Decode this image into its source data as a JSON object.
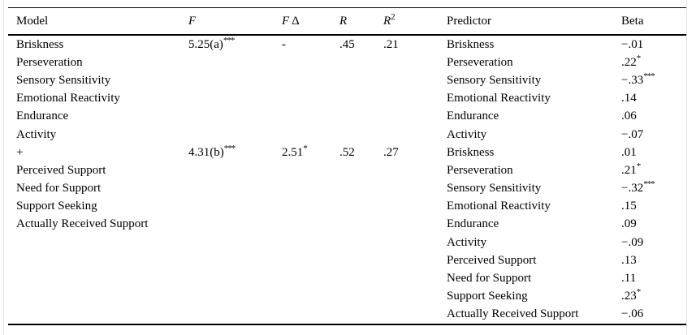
{
  "table": {
    "header": {
      "model": "Model",
      "f": "F",
      "f_delta_f": "F",
      "f_delta_symbol": "Δ",
      "r": "R",
      "r2_base": "R",
      "r2_sup": "2",
      "predictor": "Predictor",
      "beta": "Beta"
    },
    "rows": [
      {
        "model": "Briskness",
        "f": "5.25(a)",
        "f_sup": "***",
        "fd": "-",
        "fd_sup": "",
        "r": ".45",
        "r2": ".21",
        "predictor": "Briskness",
        "beta": "−.01",
        "beta_sup": ""
      },
      {
        "model": "Perseveration",
        "f": "",
        "f_sup": "",
        "fd": "",
        "fd_sup": "",
        "r": "",
        "r2": "",
        "predictor": "Perseveration",
        "beta": ".22",
        "beta_sup": "*"
      },
      {
        "model": "Sensory Sensitivity",
        "f": "",
        "f_sup": "",
        "fd": "",
        "fd_sup": "",
        "r": "",
        "r2": "",
        "predictor": "Sensory Sensitivity",
        "beta": "−.33",
        "beta_sup": "***"
      },
      {
        "model": "Emotional Reactivity",
        "f": "",
        "f_sup": "",
        "fd": "",
        "fd_sup": "",
        "r": "",
        "r2": "",
        "predictor": "Emotional Reactivity",
        "beta": ".14",
        "beta_sup": ""
      },
      {
        "model": "Endurance",
        "f": "",
        "f_sup": "",
        "fd": "",
        "fd_sup": "",
        "r": "",
        "r2": "",
        "predictor": "Endurance",
        "beta": ".06",
        "beta_sup": ""
      },
      {
        "model": "Activity",
        "f": "",
        "f_sup": "",
        "fd": "",
        "fd_sup": "",
        "r": "",
        "r2": "",
        "predictor": "Activity",
        "beta": "−.07",
        "beta_sup": ""
      },
      {
        "model": "+",
        "f": "4.31(b)",
        "f_sup": "***",
        "fd": "2.51",
        "fd_sup": "*",
        "r": ".52",
        "r2": ".27",
        "predictor": "Briskness",
        "beta": ".01",
        "beta_sup": ""
      },
      {
        "model": "Perceived Support",
        "f": "",
        "f_sup": "",
        "fd": "",
        "fd_sup": "",
        "r": "",
        "r2": "",
        "predictor": "Perseveration",
        "beta": ".21",
        "beta_sup": "*"
      },
      {
        "model": "Need for Support",
        "f": "",
        "f_sup": "",
        "fd": "",
        "fd_sup": "",
        "r": "",
        "r2": "",
        "predictor": "Sensory Sensitivity",
        "beta": "−.32",
        "beta_sup": "***"
      },
      {
        "model": "Support Seeking",
        "f": "",
        "f_sup": "",
        "fd": "",
        "fd_sup": "",
        "r": "",
        "r2": "",
        "predictor": "Emotional Reactivity",
        "beta": ".15",
        "beta_sup": ""
      },
      {
        "model": "Actually Received Support",
        "f": "",
        "f_sup": "",
        "fd": "",
        "fd_sup": "",
        "r": "",
        "r2": "",
        "predictor": "Endurance",
        "beta": ".09",
        "beta_sup": ""
      },
      {
        "model": "",
        "f": "",
        "f_sup": "",
        "fd": "",
        "fd_sup": "",
        "r": "",
        "r2": "",
        "predictor": "Activity",
        "beta": "−.09",
        "beta_sup": ""
      },
      {
        "model": "",
        "f": "",
        "f_sup": "",
        "fd": "",
        "fd_sup": "",
        "r": "",
        "r2": "",
        "predictor": "Perceived Support",
        "beta": ".13",
        "beta_sup": ""
      },
      {
        "model": "",
        "f": "",
        "f_sup": "",
        "fd": "",
        "fd_sup": "",
        "r": "",
        "r2": "",
        "predictor": "Need for Support",
        "beta": ".11",
        "beta_sup": ""
      },
      {
        "model": "",
        "f": "",
        "f_sup": "",
        "fd": "",
        "fd_sup": "",
        "r": "",
        "r2": "",
        "predictor": "Support Seeking",
        "beta": ".23",
        "beta_sup": "*"
      },
      {
        "model": "",
        "f": "",
        "f_sup": "",
        "fd": "",
        "fd_sup": "",
        "r": "",
        "r2": "",
        "predictor": "Actually Received Support",
        "beta": "−.06",
        "beta_sup": ""
      }
    ]
  },
  "colors": {
    "text": "#000000",
    "rule": "#000000",
    "scan_edge": "#e2e2e2",
    "background": "#ffffff"
  }
}
